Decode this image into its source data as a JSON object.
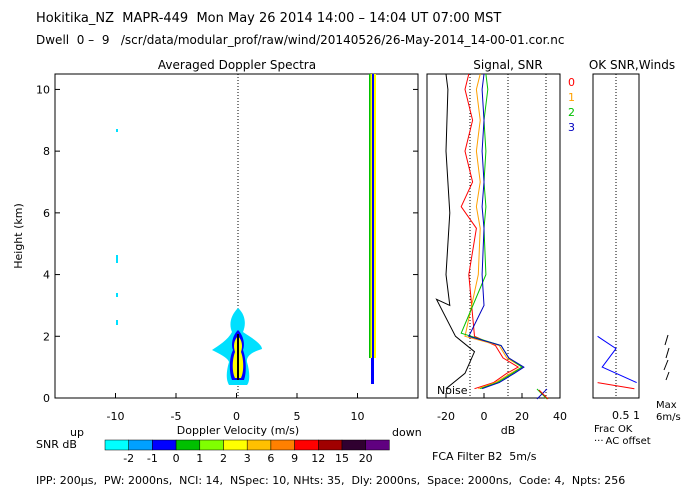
{
  "header": {
    "line1": "Hokitika_NZ  MAPR-449  Mon May 26 2014 14:00 – 14:04 UT 07:00 MST",
    "line2": "Dwell  0 –  9   /scr/data/modular_prof/raw/wind/20140526/26-May-2014_14-00-01.cor.nc"
  },
  "footer": {
    "params": "IPP: 200μs,  PW: 2000ns,  NCI: 14,  NSpec: 10, NHts: 35,  Dly: 2000ns,  Space: 2000ns,  Code: 4,  Npts: 256",
    "filter": "FCA Filter B2  5m/s"
  },
  "colors": {
    "snr_scale": [
      "#00ffff",
      "#00a0ff",
      "#0000ff",
      "#00c000",
      "#80ff00",
      "#ffff00",
      "#ffc000",
      "#ff8000",
      "#ff0000",
      "#a00000",
      "#300030",
      "#600080"
    ],
    "levels": [
      "#00e0ff",
      "#0000ff",
      "#ffff00",
      "#000000"
    ],
    "series": [
      "#ff0000",
      "#ffa000",
      "#00c000",
      "#0000c0"
    ]
  },
  "chart_data": [
    {
      "type": "heatmap",
      "title": "Averaged Doppler Spectra",
      "xlabel": "Doppler Velocity (m/s)",
      "ylabel": "Height (km)",
      "xlim": [
        -15,
        15
      ],
      "ylim": [
        0,
        10.5
      ],
      "xticks": [
        -10,
        -5,
        0,
        5,
        10
      ],
      "yticks": [
        0,
        2,
        4,
        6,
        8,
        10
      ],
      "x_end_labels": {
        "left": "up",
        "right": "down"
      },
      "colorbar": {
        "label": "SNR dB",
        "ticks": [
          "-2",
          "-1",
          "0",
          "1",
          "2",
          "3",
          "6",
          "9",
          "12",
          "15",
          "20"
        ]
      },
      "features": [
        {
          "kind": "ground-clutter",
          "velocity": 0,
          "height_range": [
            0.5,
            3.0
          ]
        },
        {
          "kind": "interference-line",
          "velocity": 11,
          "height_range": [
            0.5,
            10.5
          ]
        },
        {
          "kind": "speckle",
          "velocity": -10,
          "heights": [
            2.4,
            3.3,
            4.5,
            8.7
          ]
        }
      ]
    },
    {
      "type": "line",
      "title": "Signal, SNR",
      "xlabel": "dB",
      "xlim": [
        -30,
        40
      ],
      "ylim": [
        0,
        10.5
      ],
      "xticks": [
        -20,
        0,
        20,
        40
      ],
      "annotation": "Noise",
      "legend": [
        "0",
        "1",
        "2",
        "3"
      ],
      "series": [
        {
          "name": "0",
          "points": [
            [
              -5,
              0.3
            ],
            [
              5,
              0.5
            ],
            [
              12,
              0.8
            ],
            [
              18,
              1.0
            ],
            [
              10,
              1.3
            ],
            [
              6,
              1.7
            ],
            [
              -5,
              2.0
            ],
            [
              -8,
              4.0
            ],
            [
              -4,
              5.5
            ],
            [
              -12,
              6.2
            ],
            [
              -6,
              7.0
            ],
            [
              -10,
              8.0
            ],
            [
              -6,
              9.0
            ],
            [
              -10,
              10.0
            ],
            [
              -8,
              10.5
            ]
          ]
        },
        {
          "name": "1",
          "points": [
            [
              -3,
              0.3
            ],
            [
              6,
              0.5
            ],
            [
              14,
              0.8
            ],
            [
              20,
              1.0
            ],
            [
              12,
              1.3
            ],
            [
              8,
              1.7
            ],
            [
              -10,
              2.0
            ],
            [
              -3,
              4.0
            ],
            [
              -2,
              5.5
            ],
            [
              -4,
              6.2
            ],
            [
              -2,
              7.0
            ],
            [
              -4,
              8.0
            ],
            [
              -2,
              9.0
            ],
            [
              -4,
              10.0
            ],
            [
              -2,
              10.5
            ]
          ]
        },
        {
          "name": "2",
          "points": [
            [
              -2,
              0.3
            ],
            [
              7,
              0.5
            ],
            [
              15,
              0.8
            ],
            [
              20,
              1.0
            ],
            [
              13,
              1.3
            ],
            [
              9,
              1.7
            ],
            [
              -12,
              2.1
            ],
            [
              1,
              4.0
            ],
            [
              0,
              5.5
            ],
            [
              1,
              6.2
            ],
            [
              0,
              7.0
            ],
            [
              1,
              8.0
            ],
            [
              0,
              9.0
            ],
            [
              2,
              10.0
            ],
            [
              1,
              10.5
            ]
          ]
        },
        {
          "name": "3",
          "points": [
            [
              -1,
              0.3
            ],
            [
              8,
              0.5
            ],
            [
              16,
              0.8
            ],
            [
              21,
              1.0
            ],
            [
              13,
              1.3
            ],
            [
              9,
              1.7
            ],
            [
              -8,
              2.0
            ],
            [
              0,
              3.0
            ],
            [
              -1,
              4.0
            ],
            [
              0,
              5.5
            ],
            [
              -1,
              6.2
            ],
            [
              0,
              7.0
            ],
            [
              -1,
              8.0
            ],
            [
              0,
              9.0
            ],
            [
              -1,
              10.0
            ],
            [
              0,
              10.5
            ]
          ]
        },
        {
          "name": "noise",
          "points": [
            [
              -20,
              0.3
            ],
            [
              -10,
              0.8
            ],
            [
              -5,
              1.5
            ],
            [
              -15,
              2.0
            ],
            [
              -25,
              3.2
            ],
            [
              -18,
              3.0
            ],
            [
              -20,
              4.0
            ],
            [
              -18,
              6.0
            ],
            [
              -20,
              8.0
            ],
            [
              -19,
              10.0
            ],
            [
              -20,
              10.5
            ]
          ]
        }
      ]
    },
    {
      "type": "line",
      "title": "OK SNR,Winds",
      "xticks": [
        "0.5",
        "1"
      ],
      "xlabel": "Frac OK",
      "note": "AC offset",
      "max_label": "Max 6m/s",
      "series": [
        {
          "name": "frac-ok",
          "points": [
            [
              0.95,
              0.5
            ],
            [
              0.2,
              1.0
            ],
            [
              0.5,
              1.6
            ],
            [
              0.2,
              1.9
            ],
            [
              0.1,
              2.0
            ]
          ]
        },
        {
          "name": "ac-offset",
          "points": [
            [
              0.9,
              0.3
            ],
            [
              0.1,
              0.5
            ]
          ]
        }
      ]
    }
  ]
}
